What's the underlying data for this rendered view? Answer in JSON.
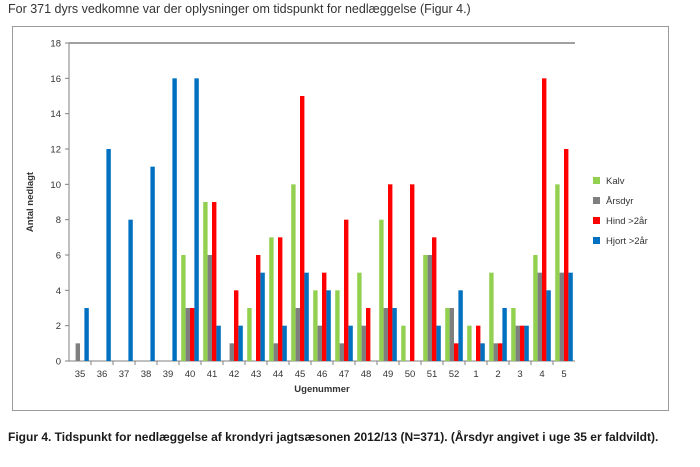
{
  "intro_text": "For 371 dyrs vedkomne var der oplysninger om tidspunkt for nedlæggelse (Figur 4.)",
  "caption": "Figur 4. Tidspunkt for nedlæggelse af krondyri jagtsæsonen 2012/13 (N=371). (Årsdyr angivet i uge 35 er faldvildt).",
  "chart_data": {
    "type": "bar",
    "xlabel": "Ugenummer",
    "ylabel": "Antal nedlagt",
    "ylim": [
      0,
      18
    ],
    "yticks": [
      0,
      2,
      4,
      6,
      8,
      10,
      12,
      14,
      16,
      18
    ],
    "grid": false,
    "legend_position": "right",
    "categories": [
      "35",
      "36",
      "37",
      "38",
      "39",
      "40",
      "41",
      "42",
      "43",
      "44",
      "45",
      "46",
      "47",
      "48",
      "49",
      "50",
      "51",
      "52",
      "1",
      "2",
      "3",
      "4",
      "5"
    ],
    "series": [
      {
        "name": "Kalv",
        "color": "#92d050",
        "values": [
          0,
          0,
          0,
          0,
          0,
          6,
          9,
          0,
          3,
          7,
          10,
          4,
          4,
          5,
          8,
          2,
          6,
          3,
          2,
          5,
          3,
          6,
          10
        ]
      },
      {
        "name": "Årsdyr",
        "color": "#7f7f7f",
        "values": [
          1,
          0,
          0,
          0,
          0,
          3,
          6,
          1,
          0,
          1,
          3,
          2,
          1,
          2,
          3,
          0,
          6,
          3,
          0,
          1,
          2,
          5,
          5
        ]
      },
      {
        "name": "Hind >2år",
        "color": "#ff0000",
        "values": [
          0,
          0,
          0,
          0,
          0,
          3,
          9,
          4,
          6,
          7,
          15,
          5,
          8,
          3,
          10,
          10,
          7,
          1,
          2,
          1,
          2,
          16,
          12
        ]
      },
      {
        "name": "Hjort >2år",
        "color": "#0070c0",
        "values": [
          3,
          12,
          8,
          11,
          16,
          16,
          2,
          2,
          5,
          2,
          5,
          4,
          2,
          0,
          3,
          0,
          2,
          4,
          1,
          3,
          2,
          4,
          5
        ]
      }
    ]
  }
}
